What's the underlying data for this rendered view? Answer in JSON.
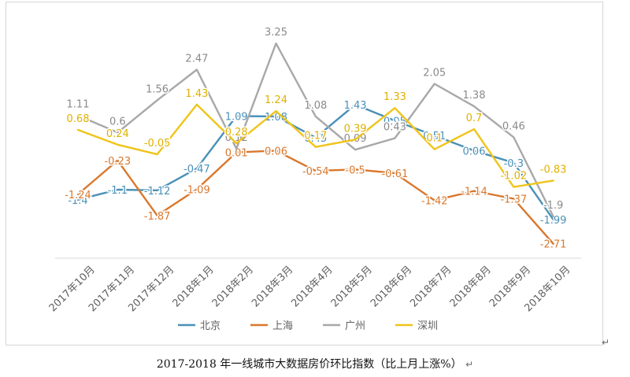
{
  "chart_data": {
    "type": "line",
    "title": "",
    "xlabel": "",
    "ylabel": "",
    "ylim": [
      -3.0,
      3.7
    ],
    "grid": false,
    "legend_position": "bottom",
    "categories": [
      "2017年10月",
      "2017年11月",
      "2017年12月",
      "2018年1月",
      "2018年2月",
      "2018年3月",
      "2018年4月",
      "2018年5月",
      "2018年6月",
      "2018年7月",
      "2018年8月",
      "2018年9月",
      "2018年10月"
    ],
    "series": [
      {
        "name": "北京",
        "color": "#4a90b8",
        "values": [
          -1.4,
          -1.1,
          -1.12,
          -0.47,
          1.09,
          1.08,
          0.45,
          1.43,
          0.95,
          0.51,
          0.06,
          -0.3,
          -1.99
        ],
        "labels": [
          "-1.4",
          "-1.1",
          "-1.12",
          "-0.47",
          "1.09",
          "1.08",
          "0.45",
          "1.43",
          "0.95",
          "0.51",
          "0.06",
          "-0.3",
          "-1.99"
        ]
      },
      {
        "name": "上海",
        "color": "#d9782d",
        "values": [
          -1.24,
          -0.23,
          -1.87,
          -1.09,
          0.01,
          0.06,
          -0.54,
          -0.5,
          -0.61,
          -1.42,
          -1.14,
          -1.37,
          -2.71
        ],
        "labels": [
          "-1.24",
          "-0.23",
          "-1.87",
          "-1.09",
          "0.01",
          "0.06",
          "-0.54",
          "-0.5",
          "-0.61",
          "-1.42",
          "-1.14",
          "-1.37",
          "-2.71"
        ]
      },
      {
        "name": "广州",
        "color": "#a8a8a8",
        "values": [
          1.11,
          0.6,
          1.56,
          2.47,
          0.12,
          3.25,
          1.08,
          0.09,
          0.43,
          2.05,
          1.38,
          0.46,
          -1.9
        ],
        "labels": [
          "1.11",
          "0.6",
          "1.56",
          "2.47",
          "0.12",
          "3.25",
          "1.08",
          "0.09",
          "0.43",
          "2.05",
          "1.38",
          "0.46",
          "-1.9"
        ]
      },
      {
        "name": "深圳",
        "color": "#f0c419",
        "values": [
          0.68,
          0.24,
          -0.05,
          1.43,
          0.28,
          1.24,
          0.17,
          0.39,
          1.33,
          0.1,
          0.7,
          -1.02,
          -0.83
        ],
        "labels": [
          "0.68",
          "0.24",
          "-0.05",
          "1.43",
          "0.28",
          "1.24",
          "0.17",
          "0.39",
          "1.33",
          "0.1",
          "0.7",
          "-1.02",
          "-0.83"
        ]
      }
    ]
  },
  "caption": "2017-2018 年一线城市大数据房价环比指数（比上月上涨%）",
  "paragraph_mark": "↵"
}
